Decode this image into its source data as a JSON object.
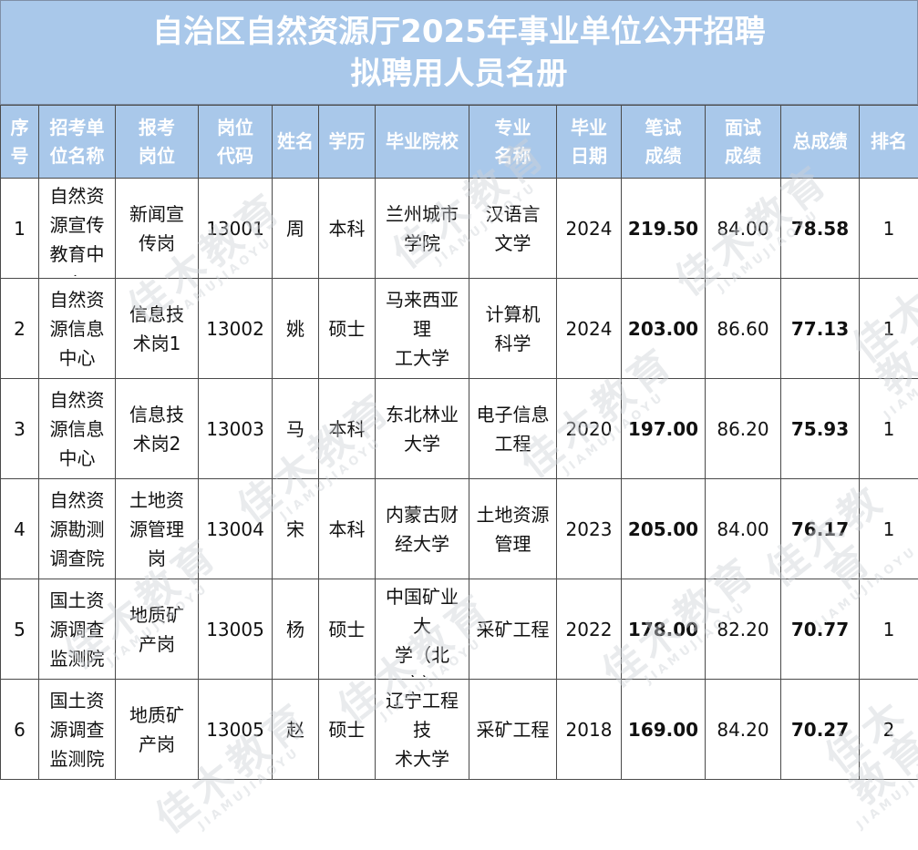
{
  "title": {
    "line1": "自治区自然资源厅2025年事业单位公开招聘",
    "line2": "拟聘用人员名册"
  },
  "headers": [
    "序\n号",
    "招考单\n位名称",
    "报考\n岗位",
    "岗位\n代码",
    "姓名",
    "学历",
    "毕业院校",
    "专业\n名称",
    "毕业\n日期",
    "笔试\n成绩",
    "面试\n成绩",
    "总成绩",
    "排名"
  ],
  "rows": [
    [
      "1",
      "自然资\n源宣传\n教育中\n心",
      "新闻宣\n传岗",
      "13001",
      "周",
      "本科",
      "兰州城市\n学院",
      "汉语言\n文学",
      "2024",
      "219.50",
      "84.00",
      "78.58",
      "1"
    ],
    [
      "2",
      "自然资\n源信息\n中心",
      "信息技\n术岗1",
      "13002",
      "姚",
      "硕士",
      "马来西亚\n理\n工大学",
      "计算机\n科学",
      "2024",
      "203.00",
      "86.60",
      "77.13",
      "1"
    ],
    [
      "3",
      "自然资\n源信息\n中心",
      "信息技\n术岗2",
      "13003",
      "马",
      "本科",
      "东北林业\n大学",
      "电子信息\n工程",
      "2020",
      "197.00",
      "86.20",
      "75.93",
      "1"
    ],
    [
      "4",
      "自然资\n源勘测\n调查院",
      "土地资\n源管理\n岗",
      "13004",
      "宋",
      "本科",
      "内蒙古财\n经大学",
      "土地资源\n管理",
      "2023",
      "205.00",
      "84.00",
      "76.17",
      "1"
    ],
    [
      "5",
      "国土资\n源调查\n监测院",
      "地质矿\n产岗",
      "13005",
      "杨",
      "硕士",
      "中国矿业\n大\n学（北\n京）",
      "采矿工程",
      "2022",
      "178.00",
      "82.20",
      "70.77",
      "1"
    ],
    [
      "6",
      "国土资\n源调查\n监测院",
      "地质矿\n产岗",
      "13005",
      "赵",
      "硕士",
      "辽宁工程\n技\n术大学",
      "采矿工程",
      "2018",
      "169.00",
      "84.20",
      "70.27",
      "2"
    ]
  ],
  "watermark": {
    "main": "佳木教育",
    "sub": "JIAMUJIAOYU"
  }
}
